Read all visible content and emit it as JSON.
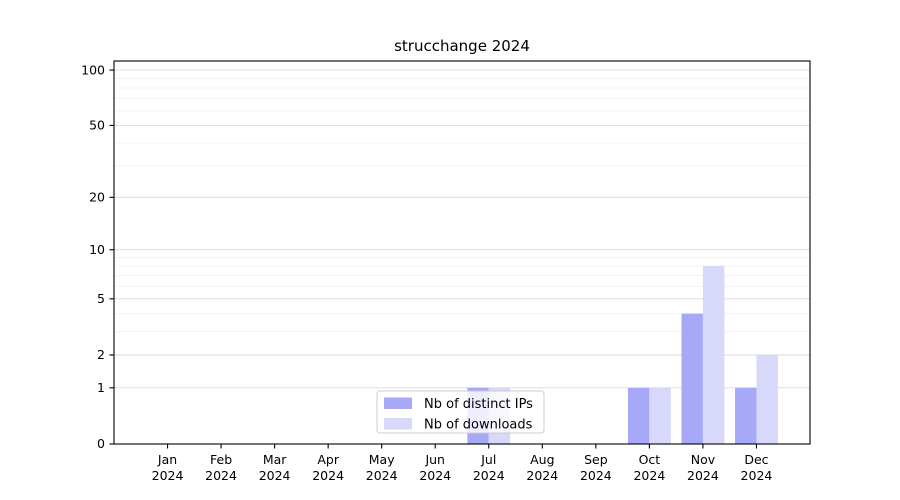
{
  "chart_data": {
    "type": "bar",
    "title": "strucchange 2024",
    "categories": [
      "Jan",
      "Feb",
      "Mar",
      "Apr",
      "May",
      "Jun",
      "Jul",
      "Aug",
      "Sep",
      "Oct",
      "Nov",
      "Dec"
    ],
    "x_tick_year": "2024",
    "series": [
      {
        "name": "Nb of distinct IPs",
        "color": "#a8a8f8",
        "values": [
          0,
          0,
          0,
          0,
          0,
          0,
          1,
          0,
          0,
          1,
          4,
          1
        ]
      },
      {
        "name": "Nb of downloads",
        "color": "#d8d8fa",
        "values": [
          0,
          0,
          0,
          0,
          0,
          0,
          1,
          0,
          0,
          1,
          8,
          2
        ]
      }
    ],
    "y_axis": {
      "scale": "log1p",
      "ticks": [
        0,
        1,
        2,
        5,
        10,
        20,
        50,
        100
      ],
      "minor_gridlines": [
        3,
        4,
        6,
        7,
        8,
        9,
        30,
        40,
        60,
        70,
        80,
        90
      ],
      "max": 112
    },
    "legend": {
      "position": "lower-center"
    },
    "grid": true,
    "colors": {
      "major_grid": "#d9d9d9",
      "minor_grid": "#f0f0f0",
      "axis": "#000000",
      "legend_border": "#cccccc",
      "legend_bg": "rgba(255,255,255,0.8)"
    }
  }
}
